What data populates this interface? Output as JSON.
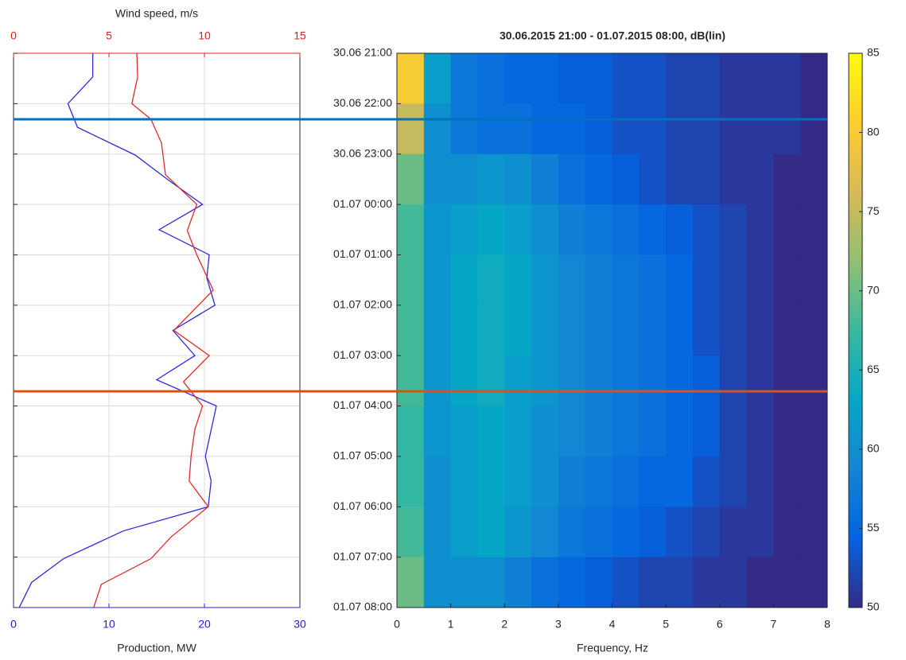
{
  "chart_data": [
    {
      "type": "line",
      "x_label": "Production, MW",
      "xlim": [
        0,
        30
      ],
      "xticks": [
        0,
        10,
        20,
        30
      ],
      "x_color": "#2020d0",
      "x2_label": "Wind speed, m/s",
      "x2lim": [
        0,
        15
      ],
      "x2ticks": [
        0,
        5,
        10,
        15
      ],
      "x2_color": "#e02020",
      "ylim": [
        0,
        11
      ],
      "grid": true,
      "series": [
        {
          "color": "#2b2bde",
          "axis": "x",
          "t": [
            0,
            0.47,
            1.0,
            1.47,
            2.02,
            2.5,
            3.0,
            3.5,
            4.0,
            4.46,
            5.0,
            5.5,
            6.0,
            6.48,
            7.0,
            8.0,
            8.49,
            9.0,
            9.48,
            10.03,
            10.5,
            11.0
          ],
          "values": [
            8.3,
            8.3,
            5.7,
            6.7,
            12.75,
            16.1,
            19.8,
            15.25,
            20.5,
            20.25,
            21.1,
            16.7,
            19.0,
            15.0,
            21.25,
            20.1,
            20.7,
            20.4,
            11.5,
            5.25,
            1.9,
            0.6
          ]
        },
        {
          "color": "#e02a2a",
          "axis": "x2",
          "t": [
            0,
            0.47,
            1.0,
            1.31,
            1.78,
            2.41,
            3.0,
            3.52,
            4.0,
            4.7,
            5.5,
            6.0,
            6.52,
            7.0,
            7.46,
            8.0,
            8.49,
            9.0,
            9.6,
            10.03,
            10.54,
            11.0
          ],
          "values": [
            6.46,
            6.5,
            6.2,
            7.2,
            7.75,
            7.96,
            9.6,
            9.1,
            9.6,
            10.46,
            8.4,
            10.25,
            8.9,
            9.9,
            9.5,
            9.3,
            9.2,
            10.2,
            8.25,
            7.2,
            4.6,
            4.2
          ]
        }
      ]
    },
    {
      "type": "heatmap",
      "title": "30.06.2015 21:00 - 01.07.2015 08:00, dB(lin)",
      "x_label": "Frequency, Hz",
      "xlim": [
        0,
        8
      ],
      "xticks": [
        0,
        1,
        2,
        3,
        4,
        5,
        6,
        7,
        8
      ],
      "ylim": [
        0,
        11
      ],
      "y_reversed": true,
      "yticks": [
        {
          "value": 0,
          "label": "30.06 21:00"
        },
        {
          "value": 1,
          "label": "30.06 22:00"
        },
        {
          "value": 2,
          "label": "30.06 23:00"
        },
        {
          "value": 3,
          "label": "01.07 00:00"
        },
        {
          "value": 4,
          "label": "01.07 01:00"
        },
        {
          "value": 5,
          "label": "01.07 02:00"
        },
        {
          "value": 6,
          "label": "01.07 03:00"
        },
        {
          "value": 7,
          "label": "01.07 04:00"
        },
        {
          "value": 8,
          "label": "01.07 05:00"
        },
        {
          "value": 9,
          "label": "01.07 06:00"
        },
        {
          "value": 10,
          "label": "01.07 07:00"
        },
        {
          "value": 11,
          "label": "01.07 08:00"
        }
      ],
      "freq_bins": [
        0,
        0.5,
        1,
        1.5,
        2,
        2.5,
        3,
        3.5,
        4,
        4.5,
        5,
        5.5,
        6,
        6.5,
        7,
        7.5,
        8
      ],
      "time_bins": [
        0,
        1,
        2,
        3,
        4,
        5,
        6,
        7,
        8,
        9,
        10,
        11
      ],
      "z": [
        [
          80,
          62,
          57,
          56,
          55,
          55,
          54,
          54,
          53,
          53,
          52,
          52,
          51,
          51,
          51,
          50
        ],
        [
          75,
          60,
          57,
          56,
          56,
          55,
          55,
          54,
          53,
          53,
          52,
          52,
          51,
          51,
          51,
          50
        ],
        [
          70,
          60,
          60,
          61,
          60,
          58,
          56,
          55,
          54,
          53,
          52,
          52,
          51,
          51,
          50,
          50
        ],
        [
          68,
          61,
          62,
          63,
          62,
          60,
          58,
          57,
          56,
          55,
          54,
          53,
          52,
          51,
          50,
          50
        ],
        [
          68,
          61,
          63,
          64,
          63,
          61,
          59,
          58,
          57,
          56,
          55,
          53,
          52,
          51,
          50,
          50
        ],
        [
          68,
          61,
          63,
          64,
          63,
          61,
          59,
          58,
          57,
          56,
          55,
          53,
          52,
          51,
          50,
          50
        ],
        [
          68,
          61,
          63,
          64,
          62,
          61,
          59,
          58,
          57,
          56,
          55,
          54,
          52,
          51,
          50,
          50
        ],
        [
          67,
          61,
          62,
          63,
          62,
          60,
          59,
          58,
          57,
          56,
          55,
          54,
          52,
          51,
          50,
          50
        ],
        [
          67,
          60,
          62,
          63,
          62,
          60,
          58,
          57,
          56,
          55,
          55,
          53,
          52,
          51,
          50,
          50
        ],
        [
          68,
          60,
          62,
          63,
          61,
          59,
          57,
          56,
          55,
          54,
          53,
          52,
          51,
          51,
          50,
          50
        ],
        [
          70,
          60,
          60,
          60,
          58,
          56,
          55,
          54,
          53,
          52,
          52,
          51,
          51,
          50,
          50,
          50
        ]
      ],
      "clim": [
        50,
        85
      ],
      "cticks": [
        50,
        55,
        60,
        65,
        70,
        75,
        80,
        85
      ],
      "colormap": [
        "#352a87",
        "#0363e1",
        "#1485d4",
        "#06a7c6",
        "#38b99e",
        "#92bf73",
        "#d9ba56",
        "#fcce2e",
        "#f9fb0e"
      ],
      "hlines": [
        {
          "value": 1.31,
          "color": "#0072bd"
        },
        {
          "value": 6.71,
          "color": "#d95319"
        }
      ]
    }
  ]
}
